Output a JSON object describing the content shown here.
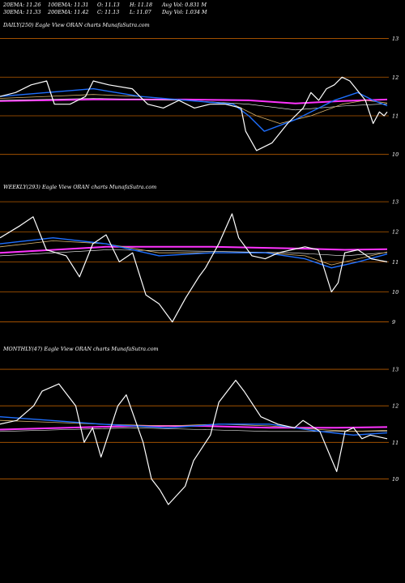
{
  "header": {
    "ema20": "20EMA: 11.26",
    "ema30": "30EMA: 11.33",
    "ema100": "100EMA: 11.31",
    "ema200": "200EMA: 11.42",
    "open": "O: 11.13",
    "close": "C: 11.13",
    "high": "H: 11.18",
    "low": "L: 11.07",
    "avg_vol": "Avg Vol: 0.831 M",
    "day_vol": "Day Vol: 1.034  M"
  },
  "colors": {
    "background": "#000000",
    "price": "#ffffff",
    "short_ema": "#1e6fff",
    "long_ema": "#ff33ff",
    "guide": "#b85c00",
    "ema_alt": "#d9b36c"
  },
  "chart_data": [
    {
      "type": "line",
      "label": "DAILY(250) Eagle  View  ORAN  charts MunafaSutra.com",
      "ylim": [
        9.7,
        13.2
      ],
      "y_ticks": [
        13,
        12,
        11,
        10
      ],
      "n_points": 250,
      "series": [
        {
          "name": "price",
          "x": [
            0,
            10,
            20,
            30,
            35,
            45,
            55,
            60,
            70,
            85,
            95,
            105,
            115,
            125,
            135,
            145,
            155,
            158,
            165,
            175,
            185,
            195,
            200,
            205,
            210,
            215,
            220,
            225,
            235,
            240,
            244,
            247,
            249
          ],
          "values": [
            11.5,
            11.6,
            11.8,
            11.9,
            11.3,
            11.3,
            11.5,
            11.9,
            11.8,
            11.7,
            11.3,
            11.2,
            11.4,
            11.2,
            11.3,
            11.3,
            11.2,
            10.6,
            10.1,
            10.3,
            10.8,
            11.2,
            11.6,
            11.4,
            11.7,
            11.8,
            12.0,
            11.9,
            11.4,
            10.8,
            11.1,
            11.0,
            11.1
          ]
        },
        {
          "name": "20EMA",
          "x": [
            0,
            30,
            60,
            90,
            120,
            150,
            160,
            170,
            190,
            215,
            230,
            240,
            249
          ],
          "values": [
            11.5,
            11.6,
            11.7,
            11.5,
            11.4,
            11.3,
            11.0,
            10.6,
            10.9,
            11.4,
            11.6,
            11.4,
            11.26
          ]
        },
        {
          "name": "30EMA",
          "x": [
            0,
            30,
            60,
            90,
            120,
            150,
            165,
            180,
            200,
            220,
            235,
            249
          ],
          "values": [
            11.45,
            11.5,
            11.55,
            11.5,
            11.4,
            11.3,
            11.0,
            10.8,
            11.0,
            11.3,
            11.4,
            11.33
          ]
        },
        {
          "name": "100EMA",
          "x": [
            0,
            60,
            120,
            160,
            190,
            220,
            249
          ],
          "values": [
            11.4,
            11.45,
            11.4,
            11.3,
            11.15,
            11.25,
            11.31
          ]
        },
        {
          "name": "200EMA",
          "x": [
            0,
            60,
            120,
            160,
            190,
            220,
            249
          ],
          "values": [
            11.38,
            11.42,
            11.42,
            11.4,
            11.32,
            11.38,
            11.42
          ]
        }
      ]
    },
    {
      "type": "line",
      "label": "WEEKLY(293) Eagle  View  ORAN  charts MunafaSutra.com",
      "ylim": [
        8.8,
        13.3
      ],
      "y_ticks": [
        13,
        12,
        11,
        10,
        9
      ],
      "n_points": 293,
      "series": [
        {
          "name": "price",
          "x": [
            0,
            15,
            25,
            35,
            50,
            60,
            70,
            80,
            90,
            100,
            110,
            120,
            130,
            140,
            150,
            155,
            165,
            175,
            180,
            190,
            200,
            210,
            220,
            230,
            240,
            250,
            255,
            260,
            270,
            280,
            292
          ],
          "values": [
            11.8,
            12.2,
            12.5,
            11.4,
            11.2,
            10.5,
            11.6,
            11.9,
            11.0,
            11.3,
            9.9,
            9.6,
            9.0,
            9.8,
            10.5,
            10.8,
            11.6,
            12.6,
            11.8,
            11.2,
            11.1,
            11.3,
            11.4,
            11.5,
            11.4,
            10.0,
            10.3,
            11.3,
            11.4,
            11.1,
            11.0
          ]
        },
        {
          "name": "20EMA",
          "x": [
            0,
            40,
            80,
            120,
            160,
            200,
            230,
            250,
            270,
            292
          ],
          "values": [
            11.6,
            11.8,
            11.6,
            11.2,
            11.3,
            11.3,
            11.1,
            10.8,
            11.0,
            11.26
          ]
        },
        {
          "name": "30EMA",
          "x": [
            0,
            40,
            80,
            120,
            160,
            200,
            230,
            250,
            270,
            292
          ],
          "values": [
            11.5,
            11.7,
            11.6,
            11.3,
            11.3,
            11.3,
            11.2,
            10.9,
            11.1,
            11.33
          ]
        },
        {
          "name": "100EMA",
          "x": [
            0,
            80,
            160,
            220,
            260,
            292
          ],
          "values": [
            11.2,
            11.4,
            11.35,
            11.3,
            11.2,
            11.31
          ]
        },
        {
          "name": "200EMA",
          "x": [
            0,
            80,
            160,
            220,
            260,
            292
          ],
          "values": [
            11.3,
            11.5,
            11.5,
            11.45,
            11.4,
            11.42
          ]
        }
      ]
    },
    {
      "type": "line",
      "label": "MONTHLY(47) Eagle  View  ORAN  charts MunafaSutra.com",
      "ylim": [
        9.7,
        13.4
      ],
      "y_ticks": [
        13,
        12,
        11,
        10
      ],
      "n_points": 47,
      "series": [
        {
          "name": "price",
          "x": [
            0,
            2,
            4,
            5,
            7,
            9,
            10,
            11,
            12,
            14,
            15,
            17,
            18,
            19,
            20,
            22,
            23,
            25,
            26,
            28,
            29,
            31,
            33,
            35,
            36,
            38,
            40,
            41,
            42,
            43,
            44,
            46
          ],
          "values": [
            11.5,
            11.6,
            12.0,
            12.4,
            12.6,
            12.0,
            11.0,
            11.4,
            10.6,
            12.0,
            12.3,
            11.0,
            10.0,
            9.7,
            9.3,
            9.8,
            10.5,
            11.2,
            12.1,
            12.7,
            12.4,
            11.7,
            11.5,
            11.4,
            11.6,
            11.3,
            10.2,
            11.3,
            11.4,
            11.1,
            11.2,
            11.1
          ]
        },
        {
          "name": "20EMA",
          "x": [
            0,
            6,
            12,
            20,
            26,
            32,
            38,
            42,
            46
          ],
          "values": [
            11.7,
            11.6,
            11.5,
            11.4,
            11.5,
            11.5,
            11.3,
            11.2,
            11.26
          ]
        },
        {
          "name": "30EMA",
          "x": [
            0,
            6,
            12,
            20,
            26,
            32,
            38,
            42,
            46
          ],
          "values": [
            11.6,
            11.55,
            11.5,
            11.45,
            11.5,
            11.45,
            11.35,
            11.3,
            11.33
          ]
        },
        {
          "name": "100EMA",
          "x": [
            0,
            8,
            16,
            24,
            32,
            40,
            46
          ],
          "values": [
            11.3,
            11.35,
            11.4,
            11.35,
            11.3,
            11.3,
            11.31
          ]
        },
        {
          "name": "200EMA",
          "x": [
            0,
            8,
            16,
            24,
            32,
            40,
            46
          ],
          "values": [
            11.35,
            11.4,
            11.45,
            11.45,
            11.4,
            11.4,
            11.42
          ]
        }
      ]
    }
  ]
}
